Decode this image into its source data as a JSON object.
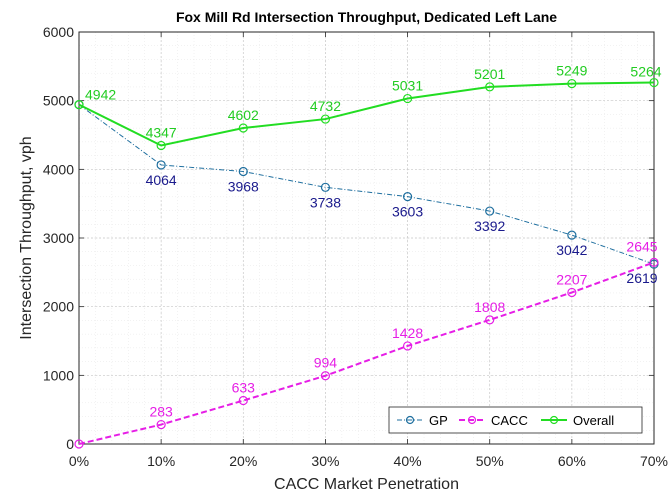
{
  "chart_data": {
    "type": "line",
    "title": "Fox Mill Rd Intersection Throughput, Dedicated Left Lane",
    "xlabel": "CACC Market Penetration",
    "ylabel": "Intersection Throughput, vph",
    "x": [
      0,
      10,
      20,
      30,
      40,
      50,
      60,
      70
    ],
    "x_tick_labels": [
      "0%",
      "10%",
      "20%",
      "30%",
      "40%",
      "50%",
      "60%",
      "70%"
    ],
    "xlim": [
      0,
      70
    ],
    "ylim": [
      0,
      6000
    ],
    "y_ticks": [
      0,
      1000,
      2000,
      3000,
      4000,
      5000,
      6000
    ],
    "y_tick_labels": [
      "0",
      "1000",
      "2000",
      "3000",
      "4000",
      "5000",
      "6000"
    ],
    "grid": "on (major and minor)",
    "legend_position": "bottom-right",
    "series": [
      {
        "name": "GP",
        "values": [
          4942,
          4064,
          3968,
          3738,
          3603,
          3392,
          3042,
          2619
        ],
        "labels": [
          "",
          "4064",
          "3968",
          "3738",
          "3603",
          "3392",
          "3042",
          "2619"
        ],
        "color": "#1f6f9f",
        "label_color": "#1a1a8c",
        "line_style": "dash-dot",
        "marker": "circle"
      },
      {
        "name": "CACC",
        "values": [
          0,
          283,
          633,
          994,
          1428,
          1808,
          2207,
          2645
        ],
        "labels": [
          "",
          "283",
          "633",
          "994",
          "1428",
          "1808",
          "2207",
          "2645"
        ],
        "color": "#e61ee6",
        "label_color": "#e61ee6",
        "line_style": "dashed",
        "marker": "circle"
      },
      {
        "name": "Overall",
        "values": [
          4942,
          4347,
          4602,
          4732,
          5031,
          5201,
          5249,
          5264
        ],
        "labels": [
          "4942",
          "4347",
          "4602",
          "4732",
          "5031",
          "5201",
          "5249",
          "5264"
        ],
        "color": "#22dd22",
        "label_color": "#22cc22",
        "line_style": "solid",
        "marker": "circle"
      }
    ]
  }
}
